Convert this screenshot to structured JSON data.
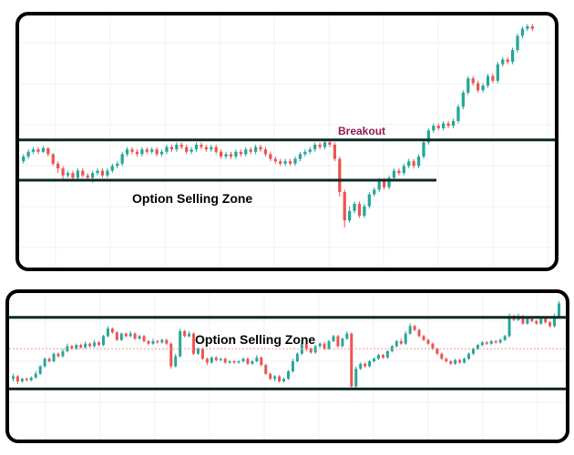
{
  "chart_data": [
    {
      "type": "candlestick",
      "title": "",
      "xlabel": "",
      "ylabel": "",
      "grid": true,
      "ylim": [
        0,
        100
      ],
      "support_level": 35,
      "resistance_level": 52,
      "annotations": {
        "zone_label": "Option Selling Zone",
        "breakout_label": "Breakout"
      },
      "colors": {
        "up": "#26a69a",
        "down": "#ef5350",
        "level_line": "#0b2a22",
        "breakout_text": "#8e1b4f",
        "grid": "#eef1f4"
      },
      "candles": [
        [
          43,
          45,
          46,
          42
        ],
        [
          45,
          47,
          48,
          44
        ],
        [
          47,
          48,
          49,
          46
        ],
        [
          48,
          47,
          49,
          46
        ],
        [
          47,
          48.5,
          49.5,
          46.5
        ],
        [
          48.5,
          46,
          49,
          45
        ],
        [
          46,
          42,
          46.5,
          41
        ],
        [
          42,
          40,
          43,
          38
        ],
        [
          40,
          37,
          41,
          35
        ],
        [
          37,
          38,
          39,
          36
        ],
        [
          38,
          36,
          39,
          35
        ],
        [
          36,
          39,
          40,
          35
        ],
        [
          39,
          37,
          40,
          36
        ],
        [
          37,
          36,
          38,
          35
        ],
        [
          36,
          38,
          39,
          34
        ],
        [
          38,
          39,
          40,
          37
        ],
        [
          39,
          37,
          40,
          36
        ],
        [
          37,
          39,
          40,
          36
        ],
        [
          39,
          41,
          42,
          38
        ],
        [
          41,
          42,
          43,
          40
        ],
        [
          42,
          46,
          47,
          41
        ],
        [
          46,
          48,
          49,
          45
        ],
        [
          48,
          47,
          49,
          46
        ],
        [
          47,
          46,
          48,
          45
        ],
        [
          46,
          48,
          49,
          45
        ],
        [
          48,
          47,
          49,
          46
        ],
        [
          47,
          48,
          49,
          46
        ],
        [
          48,
          46,
          49,
          45
        ],
        [
          46,
          47,
          48,
          45
        ],
        [
          47,
          49,
          50,
          46
        ],
        [
          49,
          48,
          50,
          47
        ],
        [
          48,
          50,
          51,
          47
        ],
        [
          50,
          49,
          51,
          48
        ],
        [
          49,
          47,
          50,
          46
        ],
        [
          47,
          48,
          49,
          46
        ],
        [
          48,
          50,
          51,
          47
        ],
        [
          50,
          49,
          51,
          48
        ],
        [
          49,
          48,
          50,
          47
        ],
        [
          48,
          49,
          50,
          47
        ],
        [
          49,
          47,
          50,
          46
        ],
        [
          47,
          45,
          48,
          44
        ],
        [
          45,
          46,
          47,
          44
        ],
        [
          46,
          45,
          47,
          44
        ],
        [
          45,
          47,
          48,
          44
        ],
        [
          47,
          46,
          48,
          45
        ],
        [
          46,
          48,
          49,
          45
        ],
        [
          48,
          47,
          49,
          46
        ],
        [
          47,
          49,
          50,
          46
        ],
        [
          49,
          48,
          50,
          47
        ],
        [
          48,
          46,
          49,
          45
        ],
        [
          46,
          44,
          47,
          43
        ],
        [
          44,
          43,
          45,
          42
        ],
        [
          43,
          42,
          44,
          41
        ],
        [
          42,
          43,
          44,
          41
        ],
        [
          43,
          42,
          44,
          41
        ],
        [
          42,
          44,
          45,
          41
        ],
        [
          44,
          46,
          47,
          43
        ],
        [
          46,
          47,
          48,
          45
        ],
        [
          47,
          48,
          49,
          46
        ],
        [
          48,
          50,
          51,
          47
        ],
        [
          50,
          49,
          51,
          48
        ],
        [
          49,
          51,
          52,
          48
        ],
        [
          51,
          50,
          52,
          49
        ],
        [
          50,
          44,
          51,
          43
        ],
        [
          44,
          30,
          45,
          28
        ],
        [
          30,
          18,
          31,
          15
        ],
        [
          18,
          22,
          24,
          17
        ],
        [
          22,
          25,
          26,
          21
        ],
        [
          25,
          20,
          26,
          19
        ],
        [
          20,
          24,
          25,
          19
        ],
        [
          24,
          29,
          30,
          23
        ],
        [
          29,
          31,
          32,
          28
        ],
        [
          31,
          35,
          36,
          30
        ],
        [
          35,
          32,
          36,
          31
        ],
        [
          32,
          36,
          37,
          31
        ],
        [
          36,
          39,
          40,
          35
        ],
        [
          39,
          38,
          40,
          37
        ],
        [
          38,
          41,
          42,
          37
        ],
        [
          41,
          43,
          44,
          40
        ],
        [
          43,
          41,
          44,
          40
        ],
        [
          41,
          45,
          46,
          40
        ],
        [
          45,
          51,
          52,
          44
        ],
        [
          51,
          56,
          57,
          50
        ],
        [
          56,
          58,
          59,
          55
        ],
        [
          58,
          57,
          59,
          56
        ],
        [
          57,
          59,
          60,
          56
        ],
        [
          59,
          58,
          60,
          57
        ],
        [
          58,
          60,
          61,
          57
        ],
        [
          60,
          66,
          67,
          59
        ],
        [
          66,
          72,
          73,
          65
        ],
        [
          72,
          78,
          79,
          71
        ],
        [
          78,
          76,
          79,
          75
        ],
        [
          76,
          73,
          77,
          72
        ],
        [
          73,
          75,
          76,
          72
        ],
        [
          75,
          79,
          80,
          74
        ],
        [
          79,
          77,
          80,
          76
        ],
        [
          77,
          84,
          85,
          76
        ],
        [
          84,
          86,
          87,
          83
        ],
        [
          86,
          85,
          87,
          84
        ],
        [
          85,
          90,
          91,
          84
        ],
        [
          90,
          96,
          97,
          89
        ],
        [
          96,
          99,
          100,
          95
        ],
        [
          99,
          100,
          101,
          98
        ],
        [
          100,
          99,
          101,
          98
        ]
      ]
    },
    {
      "type": "candlestick",
      "title": "",
      "xlabel": "",
      "ylabel": "",
      "grid": true,
      "ylim": [
        0,
        100
      ],
      "support_level": 28,
      "resistance_level": 85,
      "dotted_level": 60,
      "annotations": {
        "zone_label": "Option Selling Zone"
      },
      "colors": {
        "up": "#26a69a",
        "down": "#ef5350",
        "level_line": "#0b2a22",
        "dotted_line": "#ef9a9a",
        "grid": "#eef1f4"
      },
      "candles": [
        [
          36,
          38,
          40,
          34
        ],
        [
          38,
          34,
          39,
          32
        ],
        [
          34,
          36,
          37,
          33
        ],
        [
          36,
          35,
          37,
          34
        ],
        [
          35,
          37,
          38,
          34
        ],
        [
          37,
          40,
          42,
          36
        ],
        [
          40,
          46,
          47,
          39
        ],
        [
          46,
          52,
          53,
          45
        ],
        [
          52,
          50,
          53,
          49
        ],
        [
          50,
          56,
          57,
          49
        ],
        [
          56,
          54,
          57,
          53
        ],
        [
          54,
          58,
          60,
          53
        ],
        [
          58,
          62,
          64,
          57
        ],
        [
          62,
          60,
          63,
          59
        ],
        [
          60,
          63,
          64,
          59
        ],
        [
          63,
          61,
          64,
          60
        ],
        [
          61,
          64,
          66,
          60
        ],
        [
          64,
          62,
          65,
          61
        ],
        [
          62,
          65,
          67,
          61
        ],
        [
          65,
          63,
          66,
          62
        ],
        [
          63,
          70,
          71,
          62
        ],
        [
          70,
          76,
          78,
          69
        ],
        [
          76,
          73,
          77,
          72
        ],
        [
          73,
          67,
          74,
          66
        ],
        [
          67,
          72,
          73,
          66
        ],
        [
          72,
          70,
          73,
          69
        ],
        [
          70,
          72,
          74,
          69
        ],
        [
          72,
          68,
          73,
          67
        ],
        [
          68,
          70,
          71,
          67
        ],
        [
          70,
          66,
          71,
          65
        ],
        [
          66,
          64,
          67,
          63
        ],
        [
          64,
          66,
          68,
          63
        ],
        [
          66,
          65,
          67,
          64
        ],
        [
          65,
          67,
          68,
          64
        ],
        [
          67,
          64,
          68,
          63
        ],
        [
          64,
          46,
          65,
          44
        ],
        [
          46,
          54,
          56,
          45
        ],
        [
          54,
          74,
          76,
          53
        ],
        [
          74,
          70,
          75,
          69
        ],
        [
          70,
          72,
          74,
          69
        ],
        [
          72,
          56,
          73,
          55
        ],
        [
          56,
          60,
          61,
          55
        ],
        [
          60,
          52,
          61,
          51
        ],
        [
          52,
          49,
          53,
          47
        ],
        [
          49,
          53,
          54,
          48
        ],
        [
          53,
          51,
          54,
          50
        ],
        [
          51,
          52,
          53,
          50
        ],
        [
          52,
          49,
          53,
          48
        ],
        [
          49,
          50,
          51,
          48
        ],
        [
          50,
          49,
          51,
          48
        ],
        [
          49,
          50,
          51,
          48
        ],
        [
          50,
          52,
          53,
          49
        ],
        [
          52,
          48,
          53,
          47
        ],
        [
          48,
          50,
          51,
          47
        ],
        [
          50,
          53,
          55,
          49
        ],
        [
          53,
          47,
          54,
          46
        ],
        [
          47,
          40,
          48,
          39
        ],
        [
          40,
          36,
          41,
          35
        ],
        [
          36,
          38,
          39,
          34
        ],
        [
          38,
          34,
          39,
          33
        ],
        [
          34,
          36,
          37,
          33
        ],
        [
          36,
          42,
          43,
          35
        ],
        [
          42,
          50,
          52,
          41
        ],
        [
          50,
          56,
          57,
          49
        ],
        [
          56,
          64,
          66,
          55
        ],
        [
          64,
          60,
          65,
          58
        ],
        [
          60,
          57,
          61,
          56
        ],
        [
          57,
          62,
          63,
          56
        ],
        [
          62,
          64,
          65,
          61
        ],
        [
          64,
          60,
          65,
          59
        ],
        [
          60,
          66,
          67,
          59
        ],
        [
          66,
          70,
          71,
          65
        ],
        [
          70,
          62,
          71,
          61
        ],
        [
          62,
          68,
          69,
          61
        ],
        [
          68,
          72,
          74,
          67
        ],
        [
          72,
          30,
          73,
          28
        ],
        [
          30,
          44,
          46,
          29
        ],
        [
          44,
          48,
          49,
          43
        ],
        [
          48,
          46,
          49,
          45
        ],
        [
          46,
          50,
          51,
          45
        ],
        [
          50,
          52,
          53,
          49
        ],
        [
          52,
          55,
          56,
          51
        ],
        [
          55,
          53,
          56,
          52
        ],
        [
          53,
          58,
          59,
          52
        ],
        [
          58,
          62,
          63,
          57
        ],
        [
          62,
          66,
          67,
          61
        ],
        [
          66,
          64,
          68,
          63
        ],
        [
          64,
          72,
          74,
          63
        ],
        [
          72,
          78,
          80,
          71
        ],
        [
          78,
          75,
          79,
          74
        ],
        [
          75,
          70,
          76,
          69
        ],
        [
          70,
          67,
          71,
          66
        ],
        [
          67,
          64,
          68,
          63
        ],
        [
          64,
          60,
          65,
          59
        ],
        [
          60,
          56,
          61,
          55
        ],
        [
          56,
          52,
          57,
          51
        ],
        [
          52,
          50,
          53,
          49
        ],
        [
          50,
          48,
          51,
          47
        ],
        [
          48,
          51,
          52,
          47
        ],
        [
          51,
          49,
          52,
          48
        ],
        [
          49,
          52,
          53,
          48
        ],
        [
          52,
          56,
          57,
          51
        ],
        [
          56,
          60,
          61,
          55
        ],
        [
          60,
          63,
          64,
          59
        ],
        [
          63,
          65,
          66,
          62
        ],
        [
          65,
          64,
          66,
          63
        ],
        [
          64,
          66,
          67,
          63
        ],
        [
          66,
          65,
          67,
          64
        ],
        [
          65,
          67,
          68,
          64
        ],
        [
          67,
          70,
          71,
          66
        ],
        [
          70,
          86,
          88,
          69
        ],
        [
          86,
          83,
          87,
          82
        ],
        [
          83,
          86,
          88,
          82
        ],
        [
          86,
          80,
          87,
          79
        ],
        [
          80,
          84,
          85,
          79
        ],
        [
          84,
          82,
          85,
          81
        ],
        [
          82,
          80,
          83,
          79
        ],
        [
          80,
          84,
          85,
          79
        ],
        [
          84,
          81,
          85,
          80
        ],
        [
          81,
          78,
          82,
          77
        ],
        [
          78,
          86,
          88,
          77
        ],
        [
          86,
          96,
          98,
          85
        ]
      ]
    }
  ]
}
